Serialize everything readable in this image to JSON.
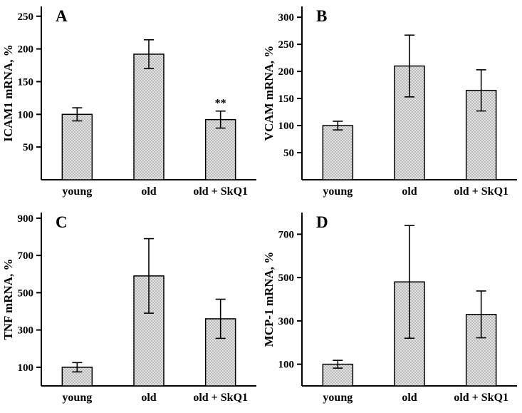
{
  "figure": {
    "panel_letters": [
      "A",
      "B",
      "C",
      "D"
    ]
  },
  "chart_data": [
    {
      "type": "bar",
      "panel_label": "A",
      "title": "",
      "xlabel": "",
      "ylabel": "ICAM1 mRNA, %",
      "categories": [
        "young",
        "old",
        "old + SkQ1"
      ],
      "values": [
        100,
        192,
        92
      ],
      "errors": [
        10,
        22,
        13
      ],
      "annotations": [
        "",
        "",
        "**"
      ],
      "yticks": [
        50,
        100,
        150,
        200,
        250
      ],
      "ylim": [
        0,
        265
      ],
      "grid": false,
      "legend": false
    },
    {
      "type": "bar",
      "panel_label": "B",
      "title": "",
      "xlabel": "",
      "ylabel": "VCAM mRNA, %",
      "categories": [
        "young",
        "old",
        "old + SkQ1"
      ],
      "values": [
        100,
        210,
        165
      ],
      "errors": [
        8,
        57,
        38
      ],
      "annotations": [
        "",
        "",
        ""
      ],
      "yticks": [
        50,
        100,
        150,
        200,
        250,
        300
      ],
      "ylim": [
        0,
        320
      ],
      "grid": false,
      "legend": false
    },
    {
      "type": "bar",
      "panel_label": "C",
      "title": "",
      "xlabel": "",
      "ylabel": "TNF mRNA, %",
      "categories": [
        "young",
        "old",
        "old + SkQ1"
      ],
      "values": [
        100,
        590,
        360
      ],
      "errors": [
        25,
        200,
        105
      ],
      "annotations": [
        "",
        "",
        ""
      ],
      "yticks": [
        100,
        300,
        500,
        700,
        900
      ],
      "ylim": [
        0,
        930
      ],
      "grid": false,
      "legend": false
    },
    {
      "type": "bar",
      "panel_label": "D",
      "title": "",
      "xlabel": "",
      "ylabel": "MCP-1 mRNA, %",
      "categories": [
        "young",
        "old",
        "old + SkQ1"
      ],
      "values": [
        100,
        480,
        330
      ],
      "errors": [
        18,
        260,
        108
      ],
      "annotations": [
        "",
        "",
        ""
      ],
      "yticks": [
        100,
        300,
        500,
        700
      ],
      "ylim": [
        0,
        800
      ],
      "grid": false,
      "legend": false
    }
  ]
}
